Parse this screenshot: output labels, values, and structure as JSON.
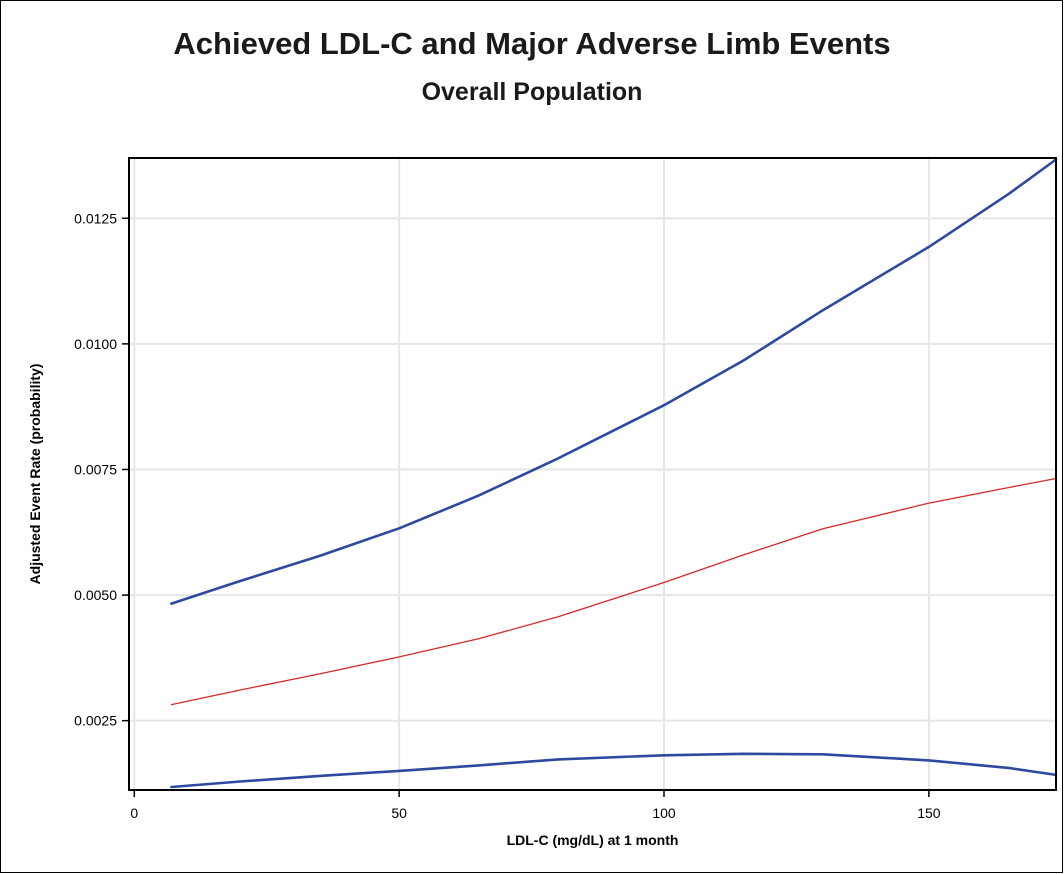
{
  "chart_data": {
    "type": "line",
    "title": "Achieved LDL-C and Major Adverse Limb Events",
    "subtitle": "Overall Population",
    "xlabel": "LDL-C (mg/dL) at 1 month",
    "ylabel": "Adjusted Event Rate (probability)",
    "xlim": [
      -1,
      174
    ],
    "ylim": [
      0.00112,
      0.0137
    ],
    "xticks": [
      0,
      50,
      100,
      150
    ],
    "xtick_labels": [
      "0",
      "50",
      "100",
      "150"
    ],
    "yticks": [
      0.0025,
      0.005,
      0.0075,
      0.01,
      0.0125
    ],
    "ytick_labels": [
      "0.0025",
      "0.0050",
      "0.0075",
      "0.0100",
      "0.0125"
    ],
    "grid": true,
    "legend": "none",
    "series": [
      {
        "role": "upper-confidence-bound",
        "color": "#2e4a9e",
        "x": [
          7,
          20,
          35,
          50,
          65,
          80,
          100,
          115,
          130,
          150,
          165,
          174
        ],
        "y": [
          0.00483,
          0.00528,
          0.00578,
          0.00633,
          0.00698,
          0.00772,
          0.00878,
          0.00967,
          0.01067,
          0.01193,
          0.01298,
          0.01367
        ]
      },
      {
        "role": "estimate",
        "color": "#d42a2a",
        "x": [
          7,
          20,
          35,
          50,
          65,
          80,
          100,
          115,
          130,
          150,
          165,
          174
        ],
        "y": [
          0.00282,
          0.00311,
          0.00343,
          0.00377,
          0.00413,
          0.00457,
          0.00525,
          0.0058,
          0.00632,
          0.00683,
          0.00714,
          0.00732
        ]
      },
      {
        "role": "lower-confidence-bound",
        "color": "#2e4a9e",
        "x": [
          7,
          20,
          35,
          50,
          65,
          80,
          100,
          115,
          130,
          150,
          165,
          174
        ],
        "y": [
          0.00118,
          0.00129,
          0.0014,
          0.0015,
          0.00161,
          0.00173,
          0.00181,
          0.00184,
          0.00183,
          0.00171,
          0.00156,
          0.00142
        ]
      }
    ]
  }
}
